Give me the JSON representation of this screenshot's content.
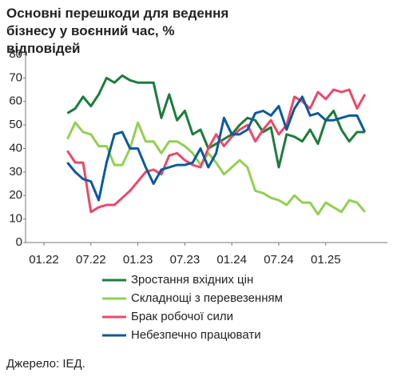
{
  "chart_data": {
    "type": "line",
    "title": "Основні перешкоди для ведення бізнесу у воєнний час, % відповідей",
    "source": "Джерело: ІЕД.",
    "categories": [
      "01.22",
      null,
      null,
      null,
      null,
      null,
      "07.22",
      null,
      null,
      null,
      null,
      null,
      "01.23",
      null,
      null,
      null,
      null,
      null,
      "07.23",
      null,
      null,
      null,
      null,
      null,
      "01.24",
      null,
      null,
      null,
      null,
      null,
      "07.24",
      null,
      null,
      null,
      null,
      null,
      "01.25",
      null,
      null,
      null,
      null,
      null
    ],
    "series": [
      {
        "name": "Зростання вхідних цін",
        "color": "#1e7b3c",
        "values": [
          null,
          null,
          null,
          55,
          57,
          62,
          58,
          63,
          70,
          68,
          71,
          69,
          68,
          68,
          68,
          53,
          63,
          52,
          56,
          46,
          48,
          40,
          42,
          44,
          46,
          50,
          53,
          52,
          47,
          49,
          32,
          46,
          45,
          43,
          48,
          42,
          52,
          56,
          48,
          43,
          47,
          47
        ]
      },
      {
        "name": "Складнощі з перевезенням",
        "color": "#92d050",
        "values": [
          null,
          null,
          null,
          44,
          51,
          47,
          46,
          41,
          41,
          33,
          33,
          40,
          51,
          43,
          43,
          38,
          43,
          43,
          41,
          38,
          33,
          38,
          34,
          29,
          32,
          35,
          32,
          22,
          21,
          19,
          18,
          16,
          20,
          17,
          17,
          12,
          17,
          15,
          13,
          18,
          17,
          13
        ]
      },
      {
        "name": "Брак робочої сили",
        "color": "#e8496b",
        "values": [
          null,
          null,
          null,
          39,
          34,
          34,
          13,
          15,
          16,
          16,
          19,
          22,
          26,
          30,
          31,
          29,
          37,
          38,
          35,
          33,
          32,
          40,
          46,
          41,
          45,
          48,
          50,
          43,
          48,
          52,
          46,
          50,
          62,
          60,
          57,
          64,
          61,
          65,
          64,
          65,
          57,
          63
        ]
      },
      {
        "name": "Небезпечно працювати",
        "color": "#0b5a9c",
        "values": [
          null,
          null,
          null,
          34,
          30,
          27,
          26,
          18,
          34,
          46,
          47,
          40,
          40,
          32,
          25,
          31,
          32,
          33,
          33,
          34,
          40,
          32,
          38,
          53,
          46,
          46,
          48,
          55,
          56,
          54,
          58,
          48,
          57,
          62,
          54,
          55,
          52,
          52,
          53,
          54,
          54,
          47
        ]
      }
    ],
    "ylim": [
      0,
      80
    ],
    "yticks": [
      0,
      10,
      20,
      30,
      40,
      50,
      60,
      70,
      80
    ]
  }
}
